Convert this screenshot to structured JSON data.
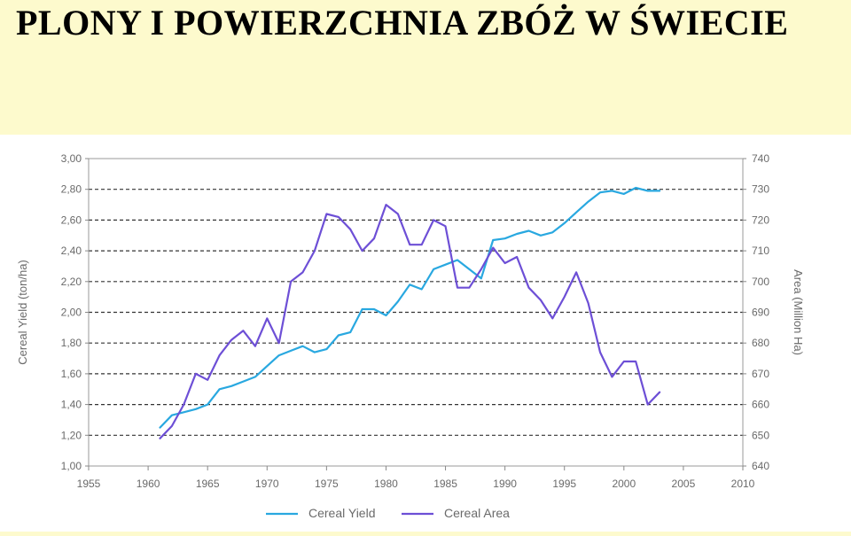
{
  "slide": {
    "title": "PLONY I POWIERZCHNIA ZBÓŻ W ŚWIECIE"
  },
  "chart_data": {
    "type": "line",
    "title": "",
    "xlabel": "",
    "ylabel": "Cereal Yield (ton/ha)",
    "y2label": "Area (Million Ha)",
    "xlim": [
      1955,
      2010
    ],
    "ylim": [
      1.0,
      3.0
    ],
    "y2lim": [
      640,
      740
    ],
    "x_ticks": [
      "1955",
      "1960",
      "1965",
      "1970",
      "1975",
      "1980",
      "1985",
      "1990",
      "1995",
      "2000",
      "2005",
      "2010"
    ],
    "y_ticks": [
      "1,00",
      "1,20",
      "1,40",
      "1,60",
      "1,80",
      "2,00",
      "2,20",
      "2,40",
      "2,60",
      "2,80",
      "3,00"
    ],
    "y2_ticks": [
      "640",
      "650",
      "660",
      "670",
      "680",
      "690",
      "700",
      "710",
      "720",
      "730",
      "740"
    ],
    "legend_position": "bottom",
    "grid": "horizontal dashed",
    "series": [
      {
        "name": "Cereal Yield",
        "axis": "left",
        "color": "#29a8e0",
        "x": [
          1961,
          1962,
          1963,
          1964,
          1965,
          1966,
          1967,
          1968,
          1969,
          1970,
          1971,
          1972,
          1973,
          1974,
          1975,
          1976,
          1977,
          1978,
          1979,
          1980,
          1981,
          1982,
          1983,
          1984,
          1985,
          1986,
          1987,
          1988,
          1989,
          1990,
          1991,
          1992,
          1993,
          1994,
          1995,
          1996,
          1997,
          1998,
          1999,
          2000,
          2001,
          2002,
          2003
        ],
        "y": [
          1.25,
          1.33,
          1.35,
          1.37,
          1.4,
          1.5,
          1.52,
          1.55,
          1.58,
          1.65,
          1.72,
          1.75,
          1.78,
          1.74,
          1.76,
          1.85,
          1.87,
          2.02,
          2.02,
          1.98,
          2.07,
          2.18,
          2.15,
          2.28,
          2.31,
          2.34,
          2.28,
          2.22,
          2.47,
          2.48,
          2.51,
          2.53,
          2.5,
          2.52,
          2.58,
          2.65,
          2.72,
          2.78,
          2.79,
          2.77,
          2.81,
          2.79,
          2.79
        ]
      },
      {
        "name": "Cereal Area",
        "axis": "right",
        "color": "#6d4fd6",
        "x": [
          1961,
          1962,
          1963,
          1964,
          1965,
          1966,
          1967,
          1968,
          1969,
          1970,
          1971,
          1972,
          1973,
          1974,
          1975,
          1976,
          1977,
          1978,
          1979,
          1980,
          1981,
          1982,
          1983,
          1984,
          1985,
          1986,
          1987,
          1988,
          1989,
          1990,
          1991,
          1992,
          1993,
          1994,
          1995,
          1996,
          1997,
          1998,
          1999,
          2000,
          2001,
          2002,
          2003
        ],
        "y": [
          649,
          653,
          660,
          670,
          668,
          676,
          681,
          684,
          679,
          688,
          680,
          700,
          703,
          710,
          722,
          721,
          717,
          710,
          714,
          725,
          722,
          712,
          712,
          720,
          718,
          698,
          698,
          704,
          711,
          706,
          708,
          698,
          694,
          688,
          695,
          703,
          693,
          677,
          669,
          674,
          674,
          660,
          664
        ]
      }
    ]
  }
}
